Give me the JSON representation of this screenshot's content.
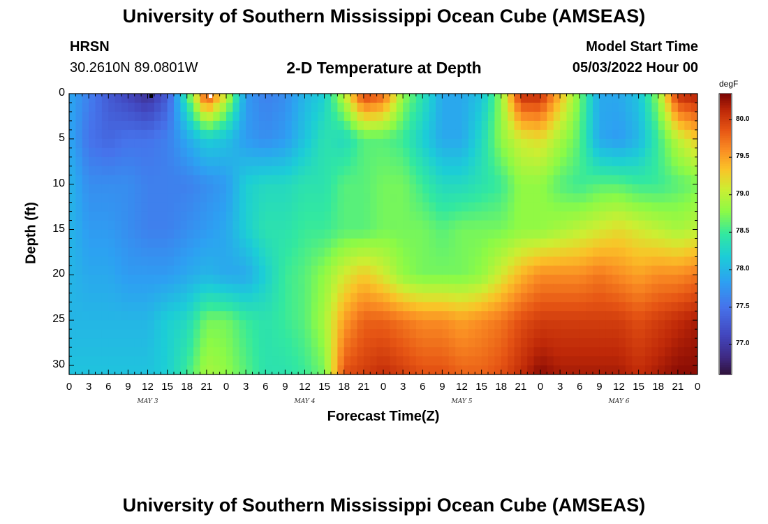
{
  "page": {
    "title": "University of Southern Mississippi Ocean Cube (AMSEAS)",
    "title_bottom": "University of Southern Mississippi Ocean Cube (AMSEAS)",
    "station_name": "HRSN",
    "station_coords": "30.2610N  89.0801W",
    "plot_title": "2-D Temperature at Depth",
    "model_start_label": "Model Start Time",
    "model_start_value": "05/03/2022 Hour 00"
  },
  "colorbar": {
    "unit": "degF",
    "min": 76.6,
    "max": 80.35,
    "ticks": [
      "77.0",
      "77.5",
      "78.0",
      "78.5",
      "79.0",
      "79.5",
      "80.0"
    ]
  },
  "chart_data": {
    "type": "heatmap",
    "xlabel": "Forecast Time(Z)",
    "ylabel": "Depth (ft)",
    "x_tick_labels": [
      "0",
      "3",
      "6",
      "9",
      "12",
      "15",
      "18",
      "21",
      "0",
      "3",
      "6",
      "9",
      "12",
      "15",
      "18",
      "21",
      "0",
      "3",
      "6",
      "9",
      "12",
      "15",
      "18",
      "21",
      "0",
      "3",
      "6",
      "9",
      "12",
      "15",
      "18",
      "21",
      "0"
    ],
    "day_labels": [
      "MAY 3",
      "MAY 4",
      "MAY 5",
      "MAY 6"
    ],
    "x_range_hours": [
      0,
      96
    ],
    "y_range_ft": [
      0,
      31
    ],
    "y_ticks": [
      0,
      5,
      10,
      15,
      20,
      25,
      30
    ],
    "z_unit": "degF",
    "z_range": [
      76.6,
      80.35
    ],
    "depths_ft": [
      0,
      5,
      10,
      15,
      20,
      25,
      31
    ],
    "hours": [
      0,
      3,
      6,
      9,
      12,
      15,
      18,
      21,
      24,
      27,
      30,
      33,
      36,
      39,
      42,
      45,
      48,
      51,
      54,
      57,
      60,
      63,
      66,
      69,
      72,
      75,
      78,
      81,
      84,
      87,
      90,
      93,
      96
    ],
    "values": [
      [
        77.9,
        77.6,
        77.3,
        77.1,
        76.9,
        77.3,
        78.5,
        80.0,
        79.1,
        77.8,
        77.6,
        77.7,
        78.0,
        78.2,
        79.0,
        80.0,
        79.8,
        78.8,
        78.4,
        77.9,
        77.9,
        78.1,
        78.8,
        80.1,
        80.1,
        79.4,
        78.7,
        77.9,
        77.9,
        78.1,
        78.8,
        80.1,
        80.2
      ],
      [
        77.9,
        77.5,
        77.4,
        77.5,
        77.5,
        77.6,
        77.9,
        78.2,
        78.1,
        77.8,
        77.7,
        77.8,
        78.1,
        78.4,
        78.3,
        78.6,
        78.6,
        78.5,
        78.2,
        77.9,
        77.9,
        78.3,
        78.8,
        79.1,
        79.2,
        78.9,
        78.6,
        77.9,
        77.8,
        78.0,
        78.5,
        79.0,
        79.3
      ],
      [
        78.0,
        77.7,
        77.7,
        77.7,
        77.6,
        77.6,
        77.6,
        77.7,
        77.8,
        78.2,
        78.3,
        78.3,
        78.4,
        78.4,
        78.6,
        78.6,
        78.7,
        78.7,
        78.5,
        78.3,
        78.3,
        78.4,
        78.5,
        78.8,
        78.8,
        78.6,
        78.5,
        78.6,
        78.6,
        78.5,
        78.5,
        78.6,
        78.7
      ],
      [
        78.0,
        77.8,
        77.8,
        77.7,
        77.6,
        77.6,
        77.7,
        77.8,
        77.9,
        78.2,
        78.4,
        78.4,
        78.5,
        78.5,
        78.6,
        78.6,
        78.7,
        78.7,
        78.7,
        78.6,
        78.7,
        78.7,
        78.7,
        78.8,
        78.8,
        78.9,
        79.0,
        79.1,
        79.2,
        79.1,
        79.0,
        78.9,
        79.0
      ],
      [
        78.0,
        77.9,
        77.9,
        77.8,
        77.8,
        77.8,
        77.9,
        78.0,
        77.9,
        77.9,
        78.2,
        78.5,
        78.6,
        78.8,
        79.1,
        79.3,
        79.1,
        78.8,
        78.7,
        78.7,
        78.7,
        78.8,
        79.1,
        79.4,
        79.6,
        79.6,
        79.6,
        79.7,
        79.6,
        79.5,
        79.6,
        79.6,
        79.7
      ],
      [
        78.0,
        78.0,
        78.0,
        78.0,
        78.0,
        78.2,
        78.3,
        78.7,
        78.7,
        78.5,
        78.4,
        78.5,
        78.6,
        78.9,
        79.5,
        79.8,
        79.8,
        79.7,
        79.6,
        79.6,
        79.5,
        79.6,
        79.7,
        79.9,
        80.0,
        80.0,
        80.0,
        80.0,
        80.0,
        79.9,
        80.0,
        80.1,
        80.2
      ],
      [
        78.1,
        78.1,
        78.1,
        78.1,
        78.1,
        78.2,
        78.5,
        78.9,
        78.8,
        78.6,
        78.4,
        78.4,
        78.5,
        78.7,
        79.9,
        80.0,
        80.1,
        80.0,
        79.9,
        79.9,
        79.8,
        79.8,
        79.9,
        80.1,
        80.3,
        80.2,
        80.2,
        80.2,
        80.2,
        80.1,
        80.2,
        80.3,
        80.3
      ]
    ]
  }
}
